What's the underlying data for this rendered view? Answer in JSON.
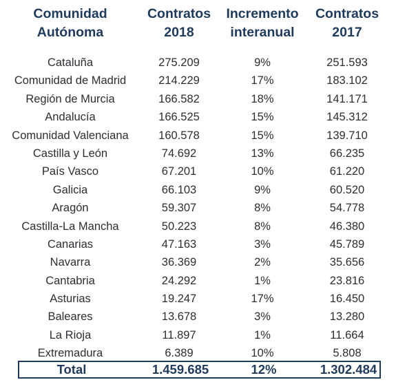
{
  "headers": {
    "community": "Comunidad\nAutónoma",
    "contracts_2018": "Contratos\n2018",
    "increase": "Incremento\ninteranual",
    "contracts_2017": "Contratos\n2017"
  },
  "rows": [
    {
      "region": "Cataluña",
      "c2018": "275.209",
      "inc": "9%",
      "c2017": "251.593"
    },
    {
      "region": "Comunidad de Madrid",
      "c2018": "214.229",
      "inc": "17%",
      "c2017": "183.102"
    },
    {
      "region": "Región de Murcia",
      "c2018": "166.582",
      "inc": "18%",
      "c2017": "141.171"
    },
    {
      "region": "Andalucía",
      "c2018": "166.525",
      "inc": "15%",
      "c2017": "145.312"
    },
    {
      "region": "Comunidad Valenciana",
      "c2018": "160.578",
      "inc": "15%",
      "c2017": "139.710"
    },
    {
      "region": "Castilla y León",
      "c2018": "74.692",
      "inc": "13%",
      "c2017": "66.235"
    },
    {
      "region": "País Vasco",
      "c2018": "67.201",
      "inc": "10%",
      "c2017": "61.220"
    },
    {
      "region": "Galicia",
      "c2018": "66.103",
      "inc": "9%",
      "c2017": "60.520"
    },
    {
      "region": "Aragón",
      "c2018": "59.307",
      "inc": "8%",
      "c2017": "54.778"
    },
    {
      "region": "Castilla-La Mancha",
      "c2018": "50.223",
      "inc": "8%",
      "c2017": "46.380"
    },
    {
      "region": "Canarias",
      "c2018": "47.163",
      "inc": "3%",
      "c2017": "45.789"
    },
    {
      "region": "Navarra",
      "c2018": "36.369",
      "inc": "2%",
      "c2017": "35.656"
    },
    {
      "region": "Cantabria",
      "c2018": "24.292",
      "inc": "1%",
      "c2017": "23.816"
    },
    {
      "region": "Asturias",
      "c2018": "19.247",
      "inc": "17%",
      "c2017": "16.450"
    },
    {
      "region": "Baleares",
      "c2018": "13.678",
      "inc": "3%",
      "c2017": "13.280"
    },
    {
      "region": "La Rioja",
      "c2018": "11.897",
      "inc": "1%",
      "c2017": "11.664"
    },
    {
      "region": "Extremadura",
      "c2018": "6.389",
      "inc": "10%",
      "c2017": "5.808"
    }
  ],
  "total": {
    "label": "Total",
    "c2018": "1.459.685",
    "inc": "12%",
    "c2017": "1.302.484"
  },
  "colors": {
    "header_text": "#1f3a5a",
    "body_text": "#2d2d33",
    "total_border": "#1f3a5a"
  }
}
